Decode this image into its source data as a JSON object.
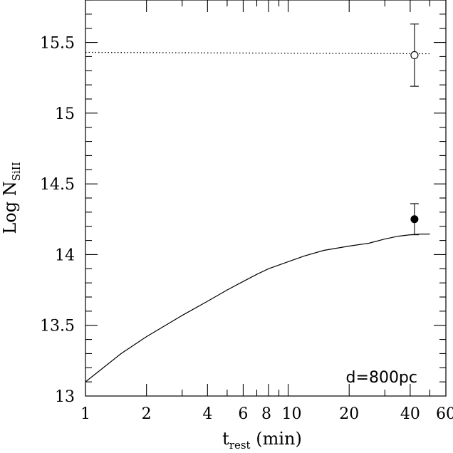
{
  "chart_data": {
    "type": "line",
    "title": "",
    "xlabel": "t",
    "xlabel_sub": "rest",
    "xlabel_units": " (min)",
    "ylabel": "Log N",
    "ylabel_sub": "SiII",
    "x_scale": "log",
    "xlim": [
      1,
      60
    ],
    "ylim": [
      13,
      15.8
    ],
    "x_ticks": [
      {
        "value": 1,
        "label": "1"
      },
      {
        "value": 2,
        "label": "2"
      },
      {
        "value": 4,
        "label": "4"
      },
      {
        "value": 6,
        "label": "6"
      },
      {
        "value": 8,
        "label": "8"
      },
      {
        "value": 10,
        "label": "10"
      },
      {
        "value": 20,
        "label": "20"
      },
      {
        "value": 40,
        "label": "40"
      },
      {
        "value": 60,
        "label": "60"
      }
    ],
    "y_ticks": [
      {
        "value": 13,
        "label": "13"
      },
      {
        "value": 13.5,
        "label": "13.5"
      },
      {
        "value": 14,
        "label": "14"
      },
      {
        "value": 14.5,
        "label": "14.5"
      },
      {
        "value": 15,
        "label": "15"
      },
      {
        "value": 15.5,
        "label": "15.5"
      }
    ],
    "grid": false,
    "annotations": [
      {
        "text": "d=800pc",
        "position": "bottom-right"
      }
    ],
    "series": [
      {
        "style": "solid",
        "x": [
          1,
          1.5,
          2,
          3,
          4,
          5,
          6,
          7,
          8,
          10,
          12,
          15,
          20,
          25,
          30,
          35,
          40,
          45,
          50
        ],
        "y": [
          13.1,
          13.3,
          13.42,
          13.57,
          13.67,
          13.75,
          13.81,
          13.86,
          13.9,
          13.95,
          13.99,
          14.03,
          14.06,
          14.08,
          14.11,
          14.13,
          14.14,
          14.145,
          14.145
        ]
      },
      {
        "style": "dotted",
        "x": [
          1,
          50
        ],
        "y": [
          15.43,
          15.42
        ]
      }
    ],
    "points": [
      {
        "marker": "open-circle",
        "x": 42,
        "y": 15.41,
        "y_err_low": 15.19,
        "y_err_high": 15.63
      },
      {
        "marker": "filled-circle",
        "x": 42,
        "y": 14.25,
        "y_err_low": 14.14,
        "y_err_high": 14.36
      }
    ]
  }
}
